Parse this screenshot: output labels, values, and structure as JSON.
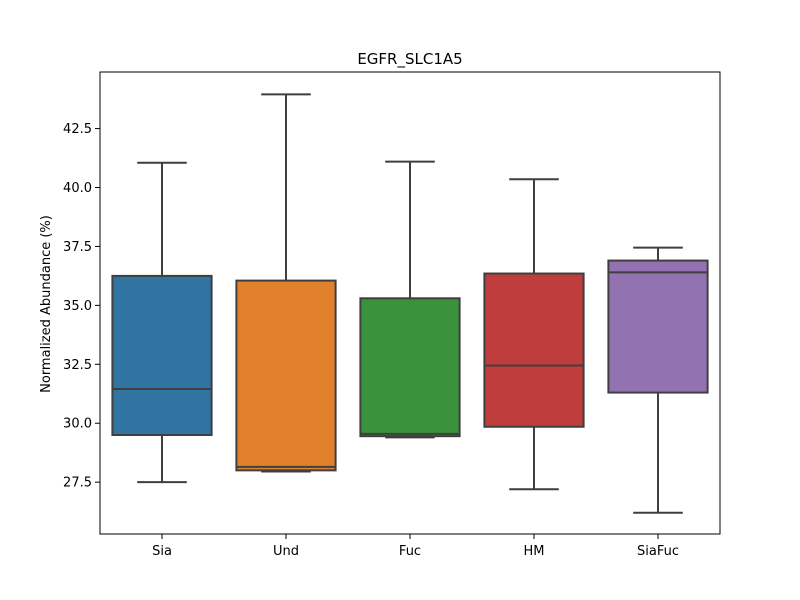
{
  "chart_data": {
    "type": "box",
    "title": "EGFR_SLC1A5",
    "xlabel": "",
    "ylabel": "Normalized Abundance (%)",
    "ylim": [
      25.3,
      44.9
    ],
    "yticks": [
      27.5,
      30.0,
      32.5,
      35.0,
      37.5,
      40.0,
      42.5
    ],
    "ytick_labels": [
      "27.5",
      "30.0",
      "32.5",
      "35.0",
      "37.5",
      "40.0",
      "42.5"
    ],
    "categories": [
      "Sia",
      "Und",
      "Fuc",
      "HM",
      "SiaFuc"
    ],
    "colors": [
      "#3274a1",
      "#e1812c",
      "#3a923a",
      "#c03d3e",
      "#9372b2"
    ],
    "boxes": [
      {
        "name": "Sia",
        "whisker_low": 27.5,
        "q1": 29.5,
        "median": 31.45,
        "q3": 36.25,
        "whisker_high": 41.05
      },
      {
        "name": "Und",
        "whisker_low": 27.95,
        "q1": 28.0,
        "median": 28.15,
        "q3": 36.05,
        "whisker_high": 43.95
      },
      {
        "name": "Fuc",
        "whisker_low": 29.4,
        "q1": 29.45,
        "median": 29.55,
        "q3": 35.3,
        "whisker_high": 41.1
      },
      {
        "name": "HM",
        "whisker_low": 27.2,
        "q1": 29.85,
        "median": 32.45,
        "q3": 36.35,
        "whisker_high": 40.35
      },
      {
        "name": "SiaFuc",
        "whisker_low": 26.2,
        "q1": 31.3,
        "median": 36.4,
        "q3": 36.9,
        "whisker_high": 37.45
      }
    ]
  }
}
